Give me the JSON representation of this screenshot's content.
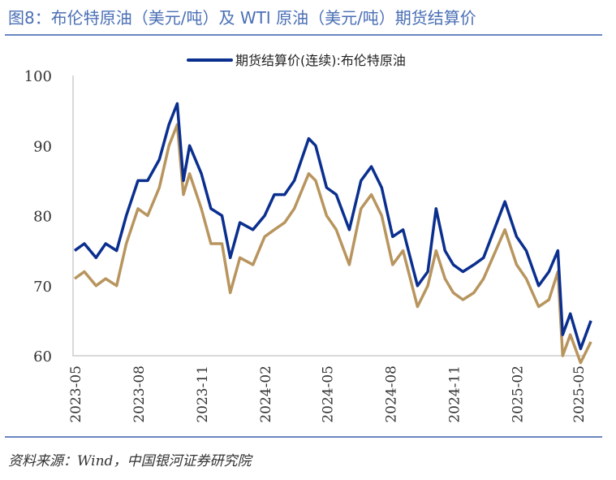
{
  "title": "图8：布伦特原油（美元/吨）及 WTI 原油（美元/吨）期货结算价",
  "source": "资料来源：Wind，中国银河证券研究院",
  "chart_data": {
    "type": "line",
    "title": "",
    "xlabel": "",
    "ylabel": "",
    "ylim": [
      60,
      100
    ],
    "yticks": [
      "60",
      "70",
      "80",
      "90",
      "100"
    ],
    "xticks": [
      "2023-05",
      "2023-08",
      "2023-11",
      "2024-02",
      "2024-05",
      "2024-08",
      "2024-11",
      "2025-02",
      "2025-05"
    ],
    "grid": false,
    "legend_position": "top",
    "series": [
      {
        "name": "期货结算价(连续):布伦特原油",
        "color": "#0b2f8f",
        "x": [
          "2023-05-01",
          "2023-05-15",
          "2023-06-01",
          "2023-06-15",
          "2023-07-01",
          "2023-07-15",
          "2023-08-01",
          "2023-08-15",
          "2023-09-01",
          "2023-09-15",
          "2023-09-27",
          "2023-10-06",
          "2023-10-15",
          "2023-11-01",
          "2023-11-15",
          "2023-12-01",
          "2023-12-13",
          "2023-12-27",
          "2024-01-15",
          "2024-02-01",
          "2024-02-15",
          "2024-03-01",
          "2024-03-15",
          "2024-04-05",
          "2024-04-15",
          "2024-05-01",
          "2024-05-15",
          "2024-06-03",
          "2024-06-20",
          "2024-07-05",
          "2024-07-20",
          "2024-08-05",
          "2024-08-20",
          "2024-09-10",
          "2024-09-25",
          "2024-10-07",
          "2024-10-20",
          "2024-11-01",
          "2024-11-15",
          "2024-12-01",
          "2024-12-15",
          "2025-01-15",
          "2025-02-01",
          "2025-02-15",
          "2025-03-05",
          "2025-03-20",
          "2025-04-02",
          "2025-04-09",
          "2025-04-20",
          "2025-05-05",
          "2025-05-20"
        ],
        "values": [
          75,
          76,
          74,
          76,
          75,
          80,
          85,
          85,
          88,
          93,
          96,
          85,
          90,
          86,
          81,
          80,
          74,
          79,
          78,
          80,
          83,
          83,
          85,
          91,
          90,
          84,
          83,
          78,
          85,
          87,
          84,
          77,
          78,
          70,
          72,
          81,
          75,
          73,
          72,
          73,
          74,
          82,
          77,
          75,
          70,
          72,
          75,
          63,
          66,
          61,
          65
        ]
      },
      {
        "color": "#b8955e",
        "x": [
          "2023-05-01",
          "2023-05-15",
          "2023-06-01",
          "2023-06-15",
          "2023-07-01",
          "2023-07-15",
          "2023-08-01",
          "2023-08-15",
          "2023-09-01",
          "2023-09-15",
          "2023-09-27",
          "2023-10-06",
          "2023-10-15",
          "2023-11-01",
          "2023-11-15",
          "2023-12-01",
          "2023-12-13",
          "2023-12-27",
          "2024-01-15",
          "2024-02-01",
          "2024-02-15",
          "2024-03-01",
          "2024-03-15",
          "2024-04-05",
          "2024-04-15",
          "2024-05-01",
          "2024-05-15",
          "2024-06-03",
          "2024-06-20",
          "2024-07-05",
          "2024-07-20",
          "2024-08-05",
          "2024-08-20",
          "2024-09-10",
          "2024-09-25",
          "2024-10-07",
          "2024-10-20",
          "2024-11-01",
          "2024-11-15",
          "2024-12-01",
          "2024-12-15",
          "2025-01-15",
          "2025-02-01",
          "2025-02-15",
          "2025-03-05",
          "2025-03-20",
          "2025-04-02",
          "2025-04-09",
          "2025-04-20",
          "2025-05-05",
          "2025-05-20"
        ],
        "values": [
          71,
          72,
          70,
          71,
          70,
          76,
          81,
          80,
          84,
          90,
          93,
          83,
          86,
          81,
          76,
          76,
          69,
          74,
          73,
          77,
          78,
          79,
          81,
          86,
          85,
          80,
          78,
          73,
          81,
          83,
          80,
          73,
          75,
          67,
          70,
          75,
          71,
          69,
          68,
          69,
          71,
          78,
          73,
          71,
          67,
          68,
          72,
          60,
          63,
          59,
          62
        ]
      }
    ]
  }
}
